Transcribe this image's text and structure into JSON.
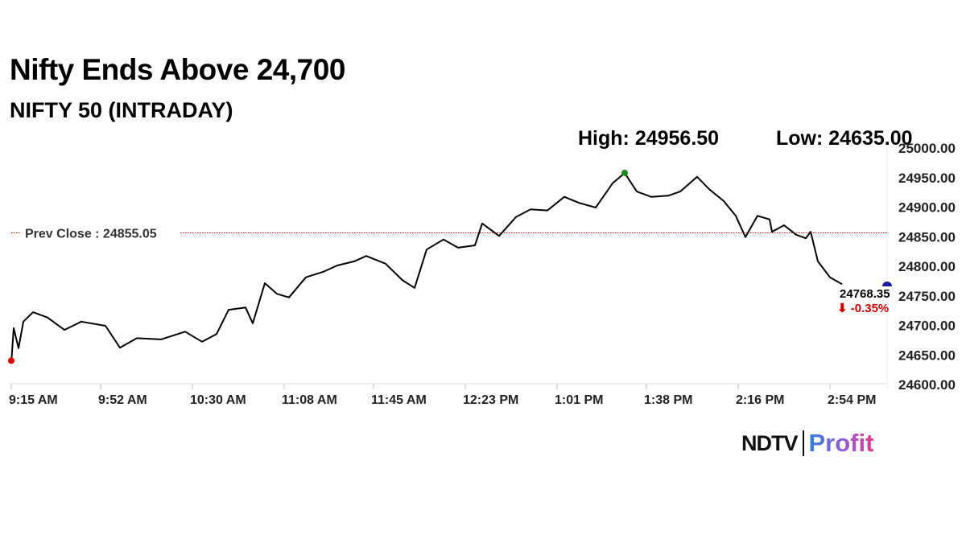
{
  "header": {
    "title": "Nifty Ends Above 24,700",
    "subtitle": "NIFTY 50 (INTRADAY)",
    "high": "High: 24956.50",
    "low": "Low: 24635.00"
  },
  "logo": {
    "brand": "NDTV",
    "product": "Profit"
  },
  "chart_data": {
    "type": "line",
    "title": "NIFTY 50 (INTRADAY)",
    "xlabel": "",
    "ylabel": "",
    "ylim": [
      24600,
      25000
    ],
    "xlim_minutes_from_open": [
      0,
      375
    ],
    "yticks": [
      "24600.00",
      "24650.00",
      "24700.00",
      "24750.00",
      "24800.00",
      "24850.00",
      "24900.00",
      "24950.00",
      "25000.00"
    ],
    "xticks": [
      {
        "label": "9:15 AM",
        "min": 0
      },
      {
        "label": "9:52 AM",
        "min": 37
      },
      {
        "label": "10:30 AM",
        "min": 75
      },
      {
        "label": "11:08 AM",
        "min": 113
      },
      {
        "label": "11:45 AM",
        "min": 150
      },
      {
        "label": "12:23 PM",
        "min": 188
      },
      {
        "label": "1:01 PM",
        "min": 226
      },
      {
        "label": "1:38 PM",
        "min": 263
      },
      {
        "label": "2:16 PM",
        "min": 301
      },
      {
        "label": "2:54 PM",
        "min": 339
      }
    ],
    "prev_close": {
      "label": "Prev Close : 24855.05",
      "value": 24855.05
    },
    "last": {
      "label": "24768.35",
      "value": 24768.35,
      "change": "⬇ -0.35%"
    },
    "colors": {
      "line": "#000000",
      "prev_close": "#c00000",
      "high": "#1a8a1a",
      "low": "#e00000",
      "last": "#1a1aa0",
      "change": "#d00000"
    },
    "series": [
      [
        0,
        24635
      ],
      [
        1,
        24694
      ],
      [
        3,
        24660
      ],
      [
        5,
        24705
      ],
      [
        9,
        24721
      ],
      [
        15,
        24712
      ],
      [
        22,
        24691
      ],
      [
        29,
        24705
      ],
      [
        39,
        24698
      ],
      [
        45,
        24661
      ],
      [
        52,
        24677
      ],
      [
        62,
        24675
      ],
      [
        72,
        24688
      ],
      [
        79,
        24671
      ],
      [
        85,
        24684
      ],
      [
        90,
        24725
      ],
      [
        97,
        24729
      ],
      [
        100,
        24702
      ],
      [
        105,
        24770
      ],
      [
        110,
        24752
      ],
      [
        115,
        24746
      ],
      [
        122,
        24780
      ],
      [
        129,
        24789
      ],
      [
        135,
        24800
      ],
      [
        142,
        24807
      ],
      [
        147,
        24816
      ],
      [
        155,
        24803
      ],
      [
        162,
        24775
      ],
      [
        167,
        24762
      ],
      [
        172,
        24827
      ],
      [
        179,
        24844
      ],
      [
        185,
        24830
      ],
      [
        192,
        24834
      ],
      [
        195,
        24871
      ],
      [
        202,
        24850
      ],
      [
        209,
        24882
      ],
      [
        215,
        24895
      ],
      [
        222,
        24893
      ],
      [
        229,
        24916
      ],
      [
        235,
        24906
      ],
      [
        242,
        24898
      ],
      [
        249,
        24939
      ],
      [
        254,
        24956.5
      ],
      [
        259,
        24925
      ],
      [
        265,
        24916
      ],
      [
        272,
        24918
      ],
      [
        277,
        24925
      ],
      [
        284,
        24950
      ],
      [
        289,
        24929
      ],
      [
        295,
        24909
      ],
      [
        300,
        24884
      ],
      [
        304,
        24848
      ],
      [
        309,
        24884
      ],
      [
        314,
        24878
      ],
      [
        315,
        24857
      ],
      [
        320,
        24868
      ],
      [
        325,
        24852
      ],
      [
        329,
        24846
      ],
      [
        331,
        24857
      ],
      [
        334,
        24807
      ],
      [
        339,
        24780
      ],
      [
        344,
        24768.35
      ]
    ]
  }
}
